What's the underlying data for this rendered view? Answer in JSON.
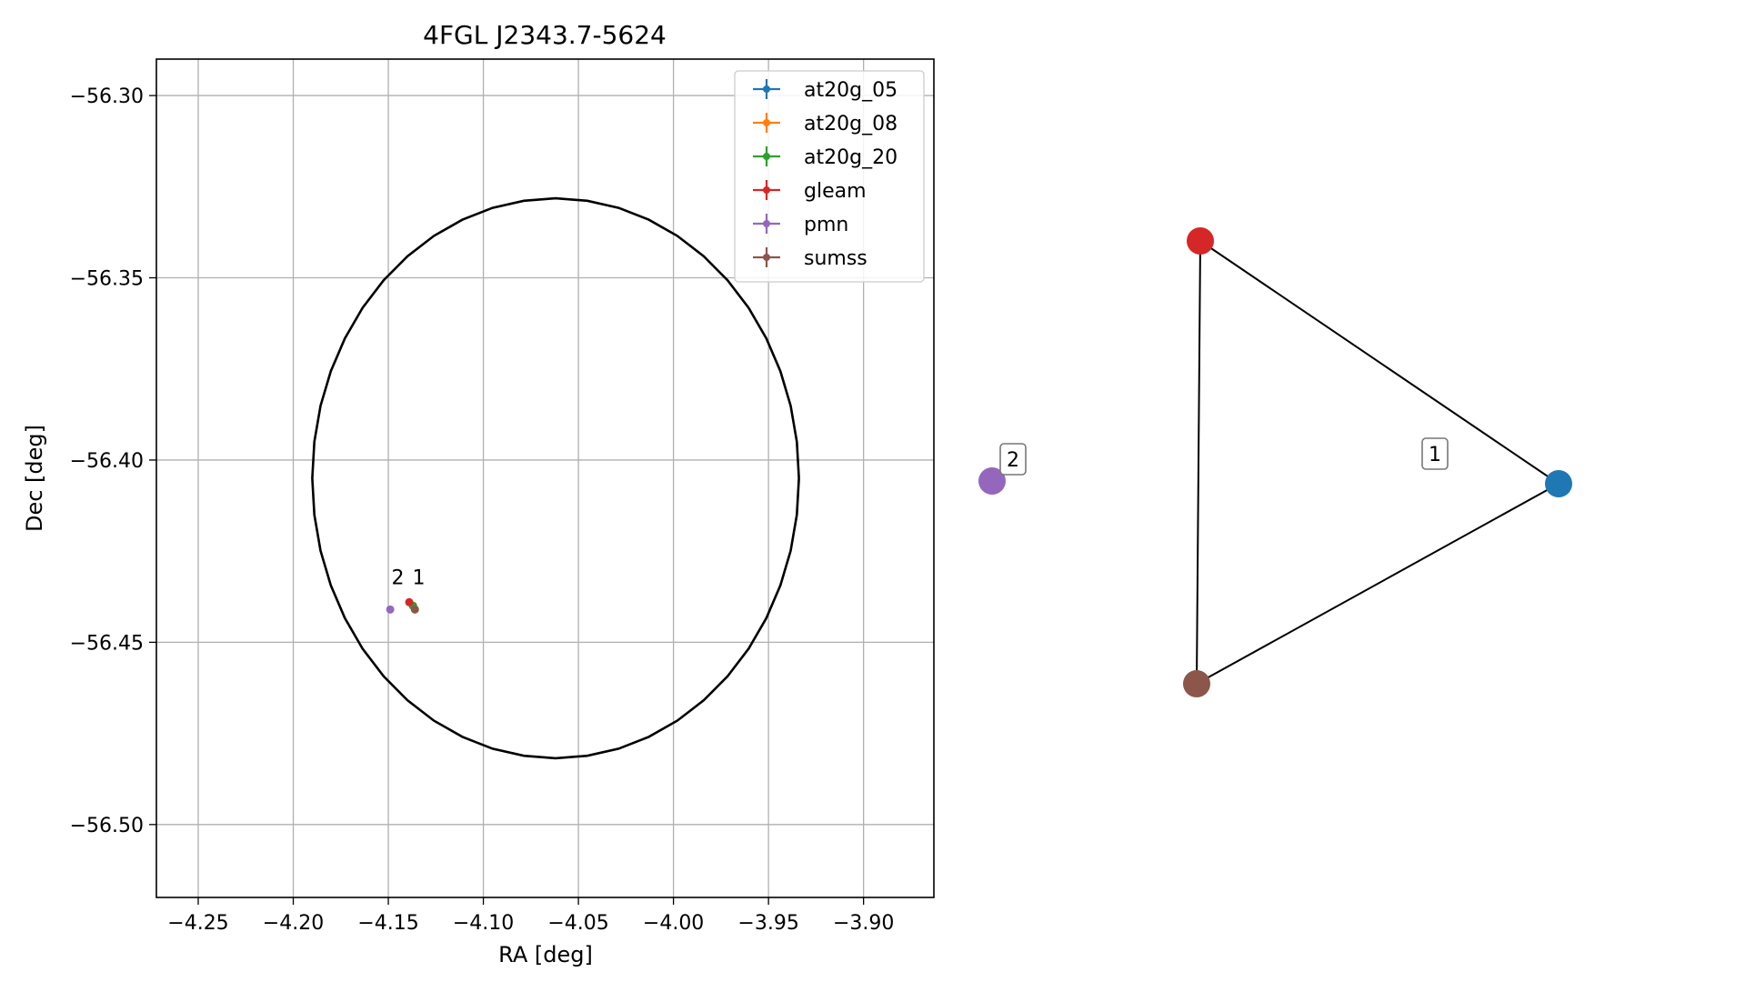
{
  "figure": {
    "title": "4FGL J2343.7-5624",
    "xlabel": "RA [deg]",
    "ylabel": "Dec [deg]"
  },
  "colors": {
    "at20g_05": "#1f77b4",
    "at20g_08": "#ff7f0e",
    "at20g_20": "#2ca02c",
    "gleam": "#d62728",
    "pmn": "#9467bd",
    "sumss": "#8c564b",
    "grid": "#b0b0b0",
    "ellipse": "#000000"
  },
  "chart_data": [
    {
      "type": "scatter",
      "title": "4FGL J2343.7-5624",
      "xlabel": "RA [deg]",
      "ylabel": "Dec [deg]",
      "xlim": [
        -4.272,
        -3.863
      ],
      "ylim": [
        -56.52,
        -56.29
      ],
      "xticks": [
        -4.25,
        -4.2,
        -4.15,
        -4.1,
        -4.05,
        -4.0,
        -3.95,
        -3.9
      ],
      "xtick_labels": [
        "−4.25",
        "−4.20",
        "−4.15",
        "−4.10",
        "−4.05",
        "−4.00",
        "−3.95",
        "−3.90"
      ],
      "yticks": [
        -56.3,
        -56.35,
        -56.4,
        -56.45,
        -56.5
      ],
      "ytick_labels": [
        "−56.30",
        "−56.35",
        "−56.40",
        "−56.45",
        "−56.50"
      ],
      "grid": true,
      "legend_position": "top-right",
      "legend": [
        "at20g_05",
        "at20g_08",
        "at20g_20",
        "gleam",
        "pmn",
        "sumss"
      ],
      "ellipse": {
        "center": [
          -4.062,
          -56.405
        ],
        "ra_halfwidth": 0.128,
        "dec_halfwidth": 0.0768
      },
      "series": [
        {
          "name": "at20g_05",
          "x": [
            -4.137
          ],
          "y": [
            -56.44
          ]
        },
        {
          "name": "at20g_08",
          "x": [
            -4.137
          ],
          "y": [
            -56.44
          ]
        },
        {
          "name": "at20g_20",
          "x": [
            -4.137
          ],
          "y": [
            -56.44
          ]
        },
        {
          "name": "gleam",
          "x": [
            -4.139
          ],
          "y": [
            -56.439
          ]
        },
        {
          "name": "pmn",
          "x": [
            -4.149
          ],
          "y": [
            -56.441
          ]
        },
        {
          "name": "sumss",
          "x": [
            -4.136
          ],
          "y": [
            -56.441
          ]
        }
      ],
      "annotations": [
        {
          "text": "2",
          "x": -4.145,
          "y": -56.434
        },
        {
          "text": "1",
          "x": -4.134,
          "y": -56.434
        }
      ]
    },
    {
      "type": "network",
      "nodes": [
        {
          "id": "pmn",
          "color": "#9467bd"
        },
        {
          "id": "gleam",
          "color": "#d62728"
        },
        {
          "id": "at20g_05",
          "color": "#1f77b4"
        },
        {
          "id": "sumss",
          "color": "#8c564b"
        }
      ],
      "edges": [
        [
          "gleam",
          "at20g_05"
        ],
        [
          "gleam",
          "sumss"
        ],
        [
          "sumss",
          "at20g_05"
        ]
      ],
      "labels": [
        {
          "text": "1",
          "group": "gleam-at20g_05-sumss"
        },
        {
          "text": "2",
          "group": "pmn"
        }
      ]
    }
  ]
}
